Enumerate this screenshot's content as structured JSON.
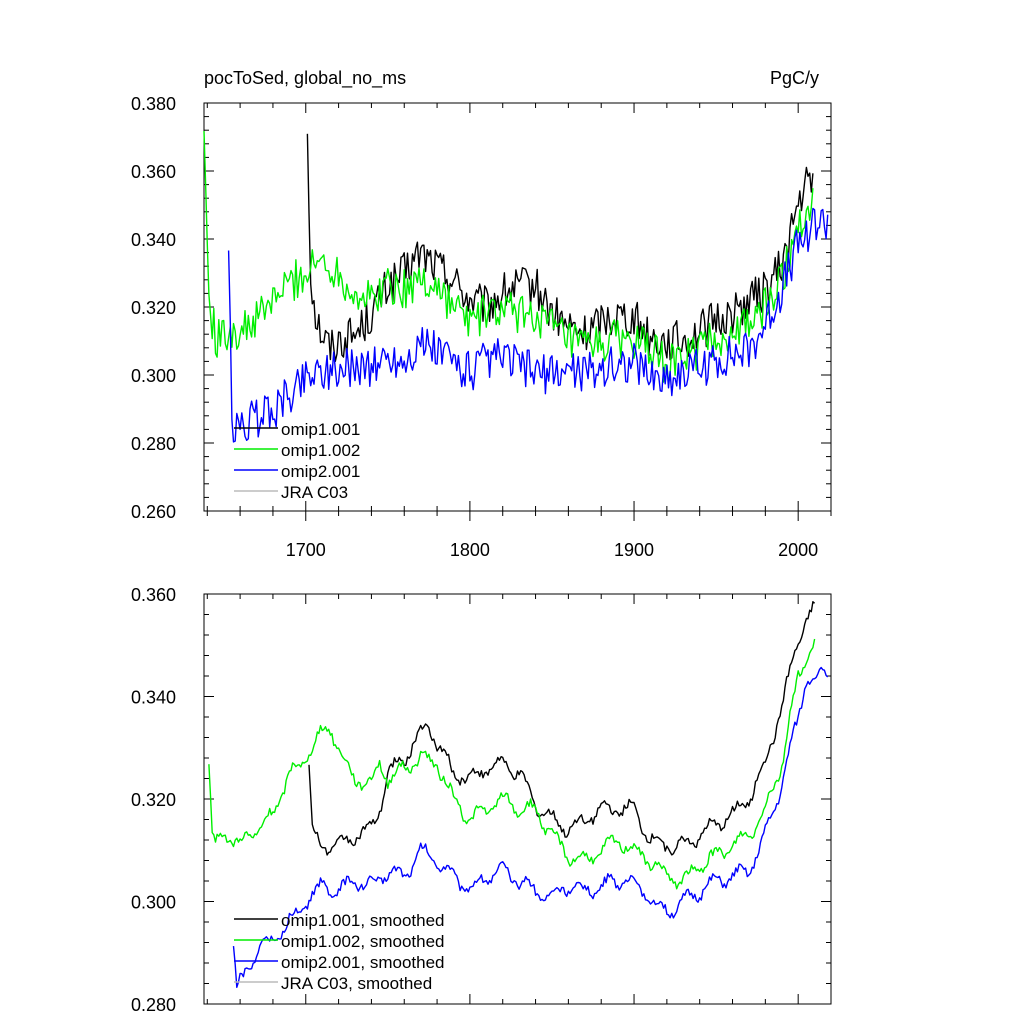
{
  "header": {
    "left_title": "pocToSed, global_no_ms",
    "right_title": "PgC/y"
  },
  "colors": {
    "omip1_001": "#000000",
    "omip1_002": "#00ee00",
    "omip2_001": "#0000ff",
    "jra_c03": "#bbbbbb"
  },
  "chart_data": [
    {
      "type": "line",
      "title": "pocToSed, global_no_ms",
      "units": "PgC/y",
      "xlim": [
        1638,
        2020
      ],
      "ylim": [
        0.26,
        0.38
      ],
      "x_ticks": [
        1700,
        1800,
        1900,
        2000
      ],
      "x_tick_labels": [
        "1700",
        "1800",
        "1900",
        "2000"
      ],
      "y_ticks": [
        0.26,
        0.28,
        0.3,
        0.32,
        0.34,
        0.36,
        0.38
      ],
      "y_tick_labels": [
        "0.260",
        "0.280",
        "0.300",
        "0.320",
        "0.340",
        "0.360",
        "0.380"
      ],
      "legend_position": "lower-left",
      "legend": [
        "omip1.001",
        "omip1.002",
        "omip2.001",
        "JRA C03"
      ],
      "series": [
        {
          "name": "omip1.001",
          "color": "#000000",
          "x": [
            1701,
            1703,
            1706,
            1710,
            1715,
            1720,
            1730,
            1740,
            1750,
            1760,
            1770,
            1780,
            1790,
            1800,
            1810,
            1820,
            1830,
            1840,
            1850,
            1860,
            1870,
            1880,
            1890,
            1900,
            1910,
            1920,
            1930,
            1940,
            1950,
            1960,
            1970,
            1980,
            1990,
            2000,
            2005,
            2009
          ],
          "y": [
            0.372,
            0.33,
            0.318,
            0.312,
            0.308,
            0.31,
            0.312,
            0.318,
            0.326,
            0.33,
            0.336,
            0.332,
            0.328,
            0.322,
            0.32,
            0.324,
            0.326,
            0.326,
            0.318,
            0.314,
            0.312,
            0.316,
            0.318,
            0.317,
            0.311,
            0.31,
            0.31,
            0.313,
            0.316,
            0.318,
            0.322,
            0.325,
            0.332,
            0.35,
            0.356,
            0.356
          ]
        },
        {
          "name": "omip1.002",
          "color": "#00ee00",
          "x": [
            1638,
            1641,
            1645,
            1650,
            1655,
            1660,
            1670,
            1680,
            1690,
            1700,
            1710,
            1720,
            1730,
            1740,
            1750,
            1760,
            1770,
            1780,
            1790,
            1800,
            1810,
            1820,
            1830,
            1840,
            1850,
            1860,
            1870,
            1880,
            1890,
            1900,
            1910,
            1920,
            1930,
            1940,
            1950,
            1960,
            1970,
            1980,
            1990,
            2000,
            2009
          ],
          "y": [
            0.372,
            0.322,
            0.311,
            0.311,
            0.314,
            0.312,
            0.316,
            0.322,
            0.327,
            0.33,
            0.334,
            0.33,
            0.324,
            0.322,
            0.327,
            0.325,
            0.328,
            0.326,
            0.32,
            0.316,
            0.318,
            0.319,
            0.318,
            0.318,
            0.314,
            0.31,
            0.308,
            0.309,
            0.311,
            0.31,
            0.307,
            0.303,
            0.305,
            0.308,
            0.31,
            0.312,
            0.315,
            0.32,
            0.328,
            0.345,
            0.351
          ]
        },
        {
          "name": "omip2.001",
          "color": "#0000ff",
          "x": [
            1653,
            1655,
            1660,
            1665,
            1670,
            1675,
            1680,
            1685,
            1690,
            1695,
            1700,
            1710,
            1720,
            1730,
            1740,
            1750,
            1760,
            1770,
            1780,
            1790,
            1800,
            1810,
            1820,
            1830,
            1840,
            1850,
            1860,
            1870,
            1880,
            1890,
            1900,
            1910,
            1920,
            1930,
            1940,
            1950,
            1960,
            1970,
            1980,
            1990,
            2000,
            2010,
            2018
          ],
          "y": [
            0.336,
            0.284,
            0.284,
            0.286,
            0.287,
            0.289,
            0.29,
            0.292,
            0.294,
            0.297,
            0.3,
            0.302,
            0.301,
            0.303,
            0.302,
            0.305,
            0.304,
            0.309,
            0.307,
            0.304,
            0.301,
            0.304,
            0.305,
            0.303,
            0.301,
            0.3,
            0.302,
            0.301,
            0.302,
            0.303,
            0.304,
            0.3,
            0.299,
            0.301,
            0.302,
            0.304,
            0.306,
            0.307,
            0.315,
            0.325,
            0.338,
            0.345,
            0.345
          ]
        },
        {
          "name": "JRA C03",
          "color": "#bbbbbb",
          "x": [],
          "y": []
        }
      ]
    },
    {
      "type": "line",
      "title": "",
      "xlim": [
        1638,
        2020
      ],
      "ylim": [
        0.28,
        0.36
      ],
      "x_ticks": [
        1700,
        1800,
        1900,
        2000
      ],
      "y_ticks": [
        0.28,
        0.3,
        0.32,
        0.34,
        0.36
      ],
      "y_tick_labels": [
        "0.280",
        "0.300",
        "0.320",
        "0.340",
        "0.360"
      ],
      "legend_position": "lower-left",
      "legend": [
        "omip1.001, smoothed",
        "omip1.002, smoothed",
        "omip2.001, smoothed",
        "JRA C03, smoothed"
      ],
      "series": [
        {
          "name": "omip1.001, smoothed",
          "color": "#000000",
          "x": [
            1702,
            1704,
            1708,
            1712,
            1720,
            1730,
            1740,
            1745,
            1750,
            1760,
            1770,
            1775,
            1780,
            1790,
            1800,
            1810,
            1820,
            1830,
            1840,
            1850,
            1860,
            1870,
            1880,
            1890,
            1900,
            1910,
            1920,
            1930,
            1940,
            1950,
            1960,
            1970,
            1980,
            1990,
            2000,
            2005,
            2010
          ],
          "y": [
            0.326,
            0.314,
            0.311,
            0.311,
            0.311,
            0.313,
            0.314,
            0.318,
            0.325,
            0.328,
            0.333,
            0.334,
            0.331,
            0.325,
            0.324,
            0.326,
            0.327,
            0.325,
            0.319,
            0.316,
            0.314,
            0.316,
            0.318,
            0.318,
            0.318,
            0.312,
            0.311,
            0.311,
            0.313,
            0.315,
            0.317,
            0.32,
            0.327,
            0.338,
            0.351,
            0.355,
            0.357
          ]
        },
        {
          "name": "omip1.002, smoothed",
          "color": "#00ee00",
          "x": [
            1641,
            1643,
            1645,
            1650,
            1655,
            1660,
            1665,
            1670,
            1675,
            1680,
            1685,
            1690,
            1695,
            1700,
            1705,
            1710,
            1715,
            1720,
            1725,
            1730,
            1740,
            1745,
            1750,
            1760,
            1770,
            1780,
            1790,
            1800,
            1810,
            1820,
            1830,
            1840,
            1850,
            1860,
            1870,
            1880,
            1890,
            1900,
            1910,
            1920,
            1930,
            1940,
            1950,
            1960,
            1970,
            1980,
            1990,
            2000,
            2010
          ],
          "y": [
            0.326,
            0.312,
            0.311,
            0.314,
            0.312,
            0.311,
            0.313,
            0.314,
            0.315,
            0.317,
            0.321,
            0.325,
            0.326,
            0.328,
            0.331,
            0.333,
            0.334,
            0.33,
            0.326,
            0.324,
            0.323,
            0.327,
            0.324,
            0.326,
            0.328,
            0.327,
            0.32,
            0.316,
            0.318,
            0.32,
            0.318,
            0.318,
            0.313,
            0.309,
            0.308,
            0.31,
            0.312,
            0.31,
            0.308,
            0.305,
            0.304,
            0.307,
            0.309,
            0.311,
            0.313,
            0.318,
            0.327,
            0.344,
            0.351
          ]
        },
        {
          "name": "omip2.001, smoothed",
          "color": "#0000ff",
          "x": [
            1656,
            1658,
            1660,
            1665,
            1670,
            1675,
            1680,
            1685,
            1690,
            1695,
            1700,
            1710,
            1720,
            1730,
            1740,
            1750,
            1760,
            1770,
            1780,
            1790,
            1800,
            1810,
            1820,
            1830,
            1840,
            1850,
            1860,
            1870,
            1880,
            1890,
            1900,
            1910,
            1920,
            1930,
            1940,
            1950,
            1960,
            1970,
            1980,
            1990,
            2000,
            2005,
            2010,
            2018
          ],
          "y": [
            0.292,
            0.283,
            0.284,
            0.287,
            0.29,
            0.292,
            0.292,
            0.294,
            0.296,
            0.298,
            0.3,
            0.303,
            0.302,
            0.304,
            0.303,
            0.306,
            0.305,
            0.31,
            0.308,
            0.305,
            0.302,
            0.305,
            0.306,
            0.304,
            0.302,
            0.301,
            0.303,
            0.302,
            0.303,
            0.304,
            0.304,
            0.3,
            0.298,
            0.3,
            0.302,
            0.304,
            0.305,
            0.306,
            0.313,
            0.323,
            0.336,
            0.344,
            0.343,
            0.345
          ]
        },
        {
          "name": "JRA C03, smoothed",
          "color": "#bbbbbb",
          "x": [],
          "y": []
        }
      ]
    }
  ]
}
